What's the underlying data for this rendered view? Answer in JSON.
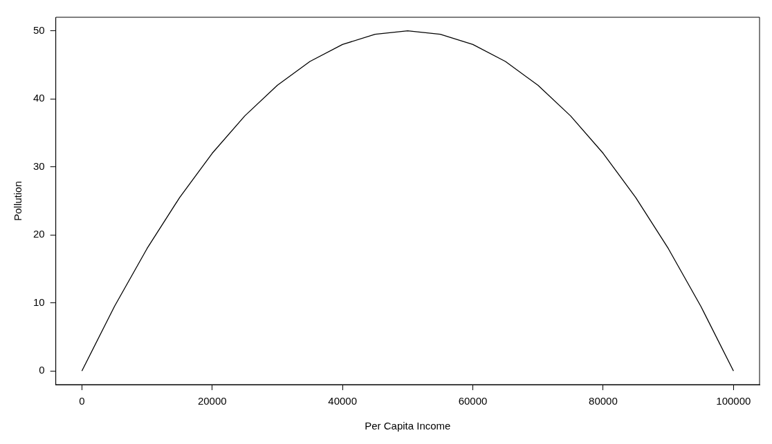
{
  "chart_data": {
    "type": "line",
    "xlabel": "Per Capita Income",
    "ylabel": "Pollution",
    "x": [
      0,
      5000,
      10000,
      15000,
      20000,
      25000,
      30000,
      35000,
      40000,
      45000,
      50000,
      55000,
      60000,
      65000,
      70000,
      75000,
      80000,
      85000,
      90000,
      95000,
      100000
    ],
    "series": [
      {
        "color": "#000000",
        "values": [
          0,
          9.5,
          18,
          25.5,
          32,
          37.5,
          42,
          45.5,
          48,
          49.5,
          50,
          49.5,
          48,
          45.5,
          42,
          37.5,
          32,
          25.5,
          18,
          9.5,
          0
        ]
      }
    ],
    "xlim": [
      -4000,
      104000
    ],
    "xticks": [
      0,
      20000,
      40000,
      60000,
      80000,
      100000
    ],
    "ylim": [
      -2,
      52
    ],
    "yticks": [
      0,
      10,
      20,
      30,
      40,
      50
    ],
    "grid": false,
    "legend": false,
    "marker": "none",
    "line_style": "solid"
  }
}
